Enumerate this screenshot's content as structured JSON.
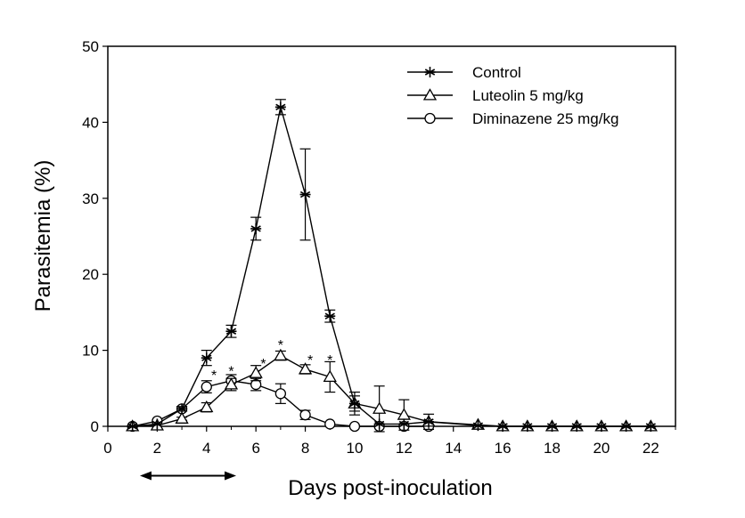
{
  "chart_data": {
    "type": "line",
    "xlabel": "Days post-inoculation",
    "ylabel": "Parasitemia (%)",
    "xlim": [
      0,
      23
    ],
    "ylim": [
      0,
      50
    ],
    "xticks": [
      0,
      2,
      4,
      6,
      8,
      10,
      12,
      14,
      16,
      18,
      20,
      22
    ],
    "yticks": [
      0,
      10,
      20,
      30,
      40,
      50
    ],
    "legend_position": "top-right",
    "grid": false,
    "series": [
      {
        "name": "Control",
        "marker": "asterisk",
        "points": [
          {
            "x": 1,
            "y": 0,
            "err": 0
          },
          {
            "x": 2,
            "y": 0.3,
            "err": 0
          },
          {
            "x": 3,
            "y": 2.3,
            "err": 0.3
          },
          {
            "x": 4,
            "y": 9,
            "err": 1
          },
          {
            "x": 5,
            "y": 12.5,
            "err": 0.8
          },
          {
            "x": 6,
            "y": 26,
            "err": 1.5
          },
          {
            "x": 7,
            "y": 42,
            "err": 1
          },
          {
            "x": 8,
            "y": 30.5,
            "err": 6
          },
          {
            "x": 9,
            "y": 14.5,
            "err": 0.8
          },
          {
            "x": 10,
            "y": 3,
            "err": 1
          },
          {
            "x": 11,
            "y": 0.3,
            "err": 0
          },
          {
            "x": 12,
            "y": 0.3,
            "err": 0
          },
          {
            "x": 13,
            "y": 0.6,
            "err": 0
          },
          {
            "x": 15,
            "y": 0.1,
            "err": 0
          },
          {
            "x": 16,
            "y": 0,
            "err": 0
          },
          {
            "x": 17,
            "y": 0,
            "err": 0
          },
          {
            "x": 18,
            "y": 0,
            "err": 0
          },
          {
            "x": 19,
            "y": 0,
            "err": 0
          },
          {
            "x": 20,
            "y": 0,
            "err": 0
          },
          {
            "x": 21,
            "y": 0,
            "err": 0
          },
          {
            "x": 22,
            "y": 0,
            "err": 0
          }
        ]
      },
      {
        "name": "Luteolin 5 mg/kg",
        "marker": "triangle",
        "points": [
          {
            "x": 1,
            "y": 0,
            "err": 0
          },
          {
            "x": 2,
            "y": 0.1,
            "err": 0
          },
          {
            "x": 3,
            "y": 1,
            "err": 0.2
          },
          {
            "x": 4,
            "y": 2.5,
            "err": 0.6
          },
          {
            "x": 5,
            "y": 5.5,
            "err": 0.8
          },
          {
            "x": 6,
            "y": 7,
            "err": 1
          },
          {
            "x": 7,
            "y": 9.3,
            "err": 0.6
          },
          {
            "x": 8,
            "y": 7.5,
            "err": 0.6
          },
          {
            "x": 9,
            "y": 6.5,
            "err": 2
          },
          {
            "x": 10,
            "y": 3,
            "err": 1.5
          },
          {
            "x": 11,
            "y": 2.3,
            "err": 3
          },
          {
            "x": 12,
            "y": 1.5,
            "err": 2
          },
          {
            "x": 13,
            "y": 0.6,
            "err": 1
          },
          {
            "x": 15,
            "y": 0.2,
            "err": 0
          },
          {
            "x": 16,
            "y": 0,
            "err": 0
          },
          {
            "x": 17,
            "y": 0,
            "err": 0
          },
          {
            "x": 18,
            "y": 0,
            "err": 0
          },
          {
            "x": 19,
            "y": 0,
            "err": 0
          },
          {
            "x": 20,
            "y": 0,
            "err": 0
          },
          {
            "x": 21,
            "y": 0,
            "err": 0
          },
          {
            "x": 22,
            "y": 0,
            "err": 0
          }
        ]
      },
      {
        "name": "Diminazene 25 mg/kg",
        "marker": "circle",
        "points": [
          {
            "x": 1,
            "y": 0,
            "err": 0
          },
          {
            "x": 2,
            "y": 0.7,
            "err": 0
          },
          {
            "x": 3,
            "y": 2.3,
            "err": 0.3
          },
          {
            "x": 4,
            "y": 5.2,
            "err": 0.8
          },
          {
            "x": 5,
            "y": 6,
            "err": 0.8
          },
          {
            "x": 6,
            "y": 5.5,
            "err": 0.8
          },
          {
            "x": 7,
            "y": 4.3,
            "err": 1.3
          },
          {
            "x": 8,
            "y": 1.5,
            "err": 0.6
          },
          {
            "x": 9,
            "y": 0.3,
            "err": 0
          },
          {
            "x": 10,
            "y": 0,
            "err": 0
          },
          {
            "x": 11,
            "y": 0,
            "err": 0
          },
          {
            "x": 12,
            "y": 0,
            "err": 0
          },
          {
            "x": 13,
            "y": 0,
            "err": 0
          }
        ]
      }
    ],
    "significance_marks": {
      "symbol": "*",
      "points": [
        {
          "x": 4.3,
          "y": 6.8
        },
        {
          "x": 5,
          "y": 7.3
        },
        {
          "x": 6.3,
          "y": 8.3
        },
        {
          "x": 7,
          "y": 10.8
        },
        {
          "x": 8.2,
          "y": 8.8
        },
        {
          "x": 9,
          "y": 8.8
        }
      ]
    },
    "treatment_period_arrow": {
      "x_start": 1.3,
      "x_end": 5.2,
      "y": -6.5
    }
  }
}
